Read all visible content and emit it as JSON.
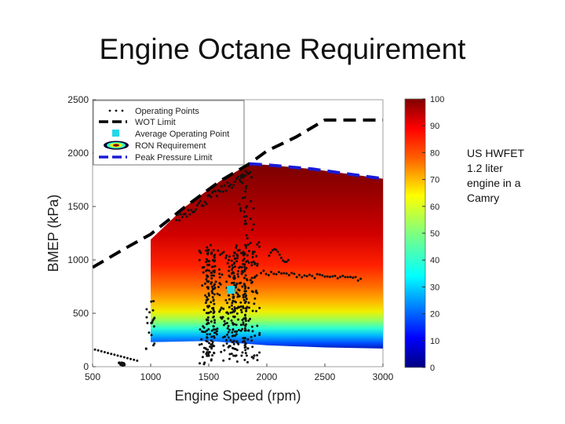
{
  "slide": {
    "title": "Engine Octane Requirement",
    "note_lines": [
      "US HWFET",
      "1.2 liter",
      "engine in a",
      "Camry"
    ]
  },
  "colors": {
    "wot": "#000000",
    "peak_pressure": "#1a1ad6",
    "operating_points": "#111111",
    "average_point": "#22d8e8"
  },
  "chart_data": {
    "type": "heatmap",
    "title": "",
    "xlabel": "Engine Speed (rpm)",
    "ylabel": "BMEP (kPa)",
    "xlim": [
      500,
      3000
    ],
    "ylim": [
      0,
      2500
    ],
    "x_ticks": [
      "500",
      "1000",
      "1500",
      "2000",
      "2500",
      "3000"
    ],
    "y_ticks": [
      "0",
      "500",
      "1000",
      "1500",
      "2000",
      "2500"
    ],
    "colorbar": {
      "range": [
        0,
        100
      ],
      "ticks": [
        "0",
        "10",
        "20",
        "30",
        "40",
        "50",
        "60",
        "70",
        "80",
        "90",
        "100"
      ],
      "colormap": "jet"
    },
    "legend": {
      "position": "top-left",
      "entries": [
        {
          "label": "Operating Points",
          "style": "dots"
        },
        {
          "label": "WOT Limit",
          "style": "dashed-black"
        },
        {
          "label": "Average Operating Point",
          "style": "cyan-square"
        },
        {
          "label": "RON Requirement",
          "style": "contour"
        },
        {
          "label": "Peak Pressure Limit",
          "style": "dashed-blue"
        }
      ]
    },
    "series": [
      {
        "name": "WOT Limit",
        "x": [
          500,
          800,
          1000,
          1300,
          1600,
          1850,
          2000,
          2250,
          2500,
          3000
        ],
        "y": [
          930,
          1120,
          1240,
          1500,
          1740,
          1900,
          2020,
          2150,
          2310,
          2310
        ]
      },
      {
        "name": "Peak Pressure Limit",
        "x": [
          1850,
          2000,
          2200,
          2400,
          2600,
          2800,
          3000
        ],
        "y": [
          1900,
          1890,
          1870,
          1850,
          1820,
          1790,
          1760
        ]
      },
      {
        "name": "Average Operating Point",
        "x": [
          1690
        ],
        "y": [
          720
        ]
      }
    ],
    "ron_region": {
      "upper_x": [
        1000,
        1300,
        1600,
        1850,
        2000,
        2200,
        2400,
        2600,
        2800,
        3000
      ],
      "upper_y": [
        1190,
        1500,
        1740,
        1900,
        1890,
        1870,
        1850,
        1820,
        1790,
        1760
      ],
      "lower_x": [
        1000,
        1500,
        2000,
        2500,
        3000
      ],
      "lower_y": [
        230,
        240,
        200,
        180,
        170
      ]
    }
  }
}
